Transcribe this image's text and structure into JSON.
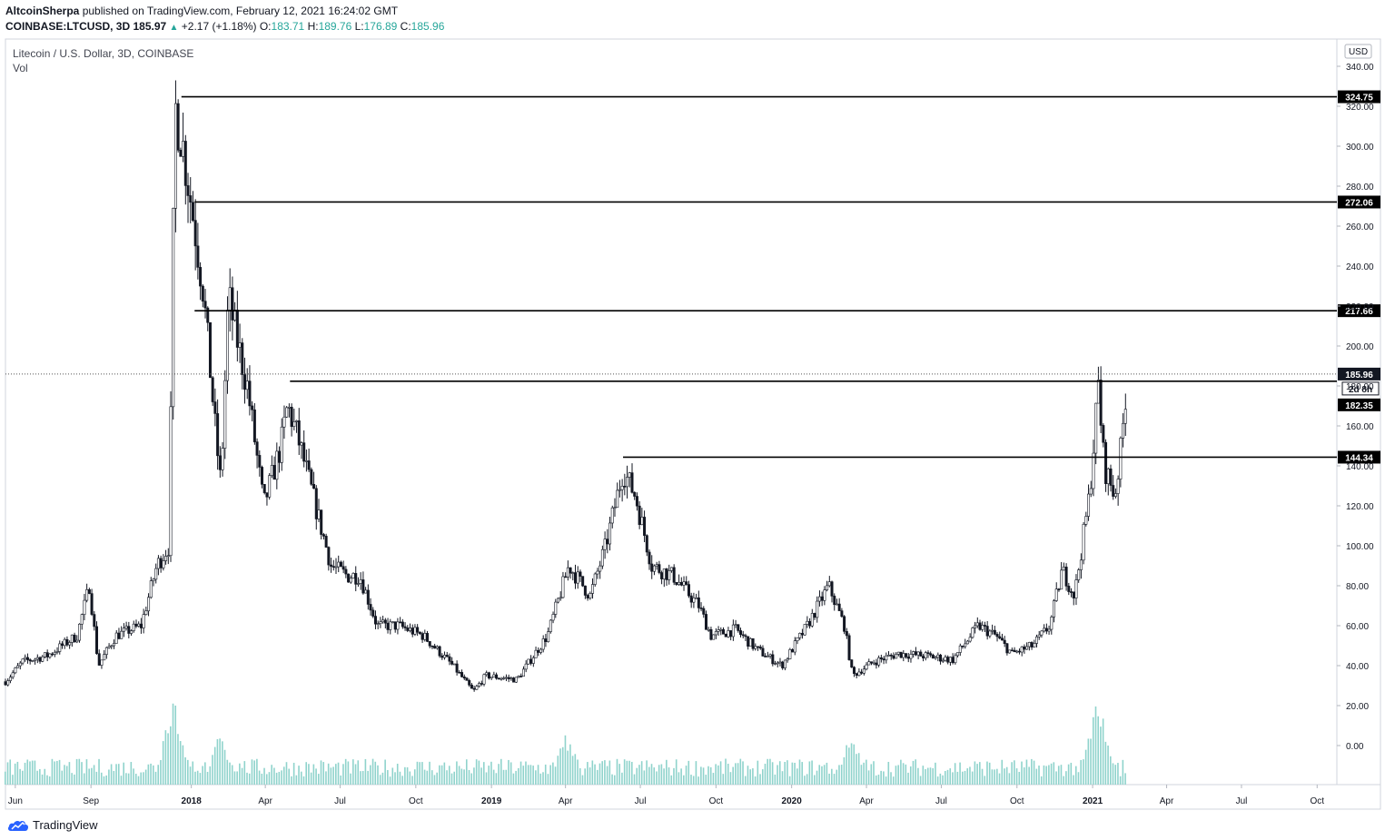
{
  "header": {
    "author": "AltcoinSherpa",
    "published": "published on TradingView.com, February 12, 2021 16:24:02 GMT",
    "symbol": "COINBASE:LTCUSD, 3D",
    "last": "185.97",
    "change": "+2.17 (+1.18%)",
    "o_label": "O:",
    "o": "183.71",
    "h_label": "H:",
    "h": "189.76",
    "l_label": "L:",
    "l": "176.89",
    "c_label": "C:",
    "c": "185.96"
  },
  "pane": {
    "title": "Litecoin / U.S. Dollar, 3D, COINBASE",
    "vol_label": "Vol"
  },
  "footer": {
    "brand": "TradingView"
  },
  "colors": {
    "candle": "#131722",
    "volume": "#8fd3cc",
    "grid": "#ffffff",
    "accent": "#26a69a"
  },
  "chart_data": {
    "type": "candlestick",
    "currency": "USD",
    "ylim": [
      -20,
      350
    ],
    "y_ticks": [
      "340.00",
      "320.00",
      "300.00",
      "280.00",
      "260.00",
      "240.00",
      "220.00",
      "200.00",
      "180.00",
      "160.00",
      "140.00",
      "120.00",
      "100.00",
      "80.00",
      "60.00",
      "40.00",
      "20.00",
      "0.00"
    ],
    "x_ticks": [
      "Jun",
      "Sep",
      "2018",
      "Apr",
      "Jul",
      "Oct",
      "2019",
      "Apr",
      "Jul",
      "Oct",
      "2020",
      "Apr",
      "Jul",
      "Oct",
      "2021",
      "Apr",
      "Jul",
      "Oct"
    ],
    "last_price": {
      "value": 185.96,
      "label": "185.96",
      "countdown": "2d 8h"
    },
    "horizontal_levels": [
      {
        "value": 324.75,
        "label": "324.75",
        "from": "2017-12-20"
      },
      {
        "value": 272.06,
        "label": "272.06",
        "from": "2018-01-05"
      },
      {
        "value": 217.66,
        "label": "217.66",
        "from": "2018-01-05"
      },
      {
        "value": 182.35,
        "label": "182.35",
        "from": "2018-05-01"
      },
      {
        "value": 144.34,
        "label": "144.34",
        "from": "2019-06-10"
      }
    ],
    "price_path": [
      [
        "2017-05-20",
        32
      ],
      [
        "2017-06-10",
        42
      ],
      [
        "2017-07-10",
        45
      ],
      [
        "2017-08-15",
        55
      ],
      [
        "2017-08-30",
        80
      ],
      [
        "2017-09-10",
        40
      ],
      [
        "2017-10-01",
        55
      ],
      [
        "2017-11-01",
        60
      ],
      [
        "2017-11-20",
        90
      ],
      [
        "2017-12-05",
        100
      ],
      [
        "2017-12-12",
        320
      ],
      [
        "2017-12-20",
        305
      ],
      [
        "2018-01-05",
        260
      ],
      [
        "2018-01-15",
        230
      ],
      [
        "2018-02-01",
        150
      ],
      [
        "2018-02-06",
        130
      ],
      [
        "2018-02-15",
        225
      ],
      [
        "2018-02-22",
        210
      ],
      [
        "2018-03-10",
        180
      ],
      [
        "2018-03-30",
        120
      ],
      [
        "2018-04-20",
        150
      ],
      [
        "2018-04-28",
        170
      ],
      [
        "2018-05-10",
        155
      ],
      [
        "2018-06-01",
        120
      ],
      [
        "2018-06-20",
        90
      ],
      [
        "2018-07-10",
        85
      ],
      [
        "2018-07-25",
        85
      ],
      [
        "2018-08-15",
        60
      ],
      [
        "2018-09-10",
        60
      ],
      [
        "2018-10-10",
        55
      ],
      [
        "2018-11-15",
        40
      ],
      [
        "2018-12-10",
        27
      ],
      [
        "2018-12-25",
        35
      ],
      [
        "2019-02-01",
        33
      ],
      [
        "2019-03-10",
        55
      ],
      [
        "2019-04-05",
        90
      ],
      [
        "2019-05-01",
        75
      ],
      [
        "2019-05-20",
        100
      ],
      [
        "2019-06-10",
        138
      ],
      [
        "2019-06-25",
        125
      ],
      [
        "2019-07-15",
        90
      ],
      [
        "2019-08-10",
        85
      ],
      [
        "2019-09-10",
        70
      ],
      [
        "2019-09-25",
        55
      ],
      [
        "2019-10-25",
        58
      ],
      [
        "2019-11-20",
        48
      ],
      [
        "2019-12-20",
        40
      ],
      [
        "2020-01-20",
        60
      ],
      [
        "2020-02-15",
        80
      ],
      [
        "2020-03-05",
        60
      ],
      [
        "2020-03-15",
        35
      ],
      [
        "2020-04-10",
        42
      ],
      [
        "2020-05-10",
        46
      ],
      [
        "2020-06-10",
        45
      ],
      [
        "2020-07-15",
        43
      ],
      [
        "2020-08-15",
        60
      ],
      [
        "2020-09-05",
        55
      ],
      [
        "2020-09-25",
        46
      ],
      [
        "2020-10-20",
        50
      ],
      [
        "2020-11-10",
        60
      ],
      [
        "2020-11-25",
        88
      ],
      [
        "2020-12-10",
        75
      ],
      [
        "2020-12-28",
        125
      ],
      [
        "2021-01-08",
        180
      ],
      [
        "2021-01-15",
        140
      ],
      [
        "2021-01-28",
        125
      ],
      [
        "2021-02-05",
        150
      ],
      [
        "2021-02-12",
        186
      ]
    ],
    "volume_peaks": [
      [
        "2017-12-10",
        "high"
      ],
      [
        "2018-02-06",
        "medium"
      ],
      [
        "2019-04-03",
        "medium"
      ],
      [
        "2020-03-13",
        "medium"
      ],
      [
        "2021-01-08",
        "high"
      ]
    ]
  }
}
